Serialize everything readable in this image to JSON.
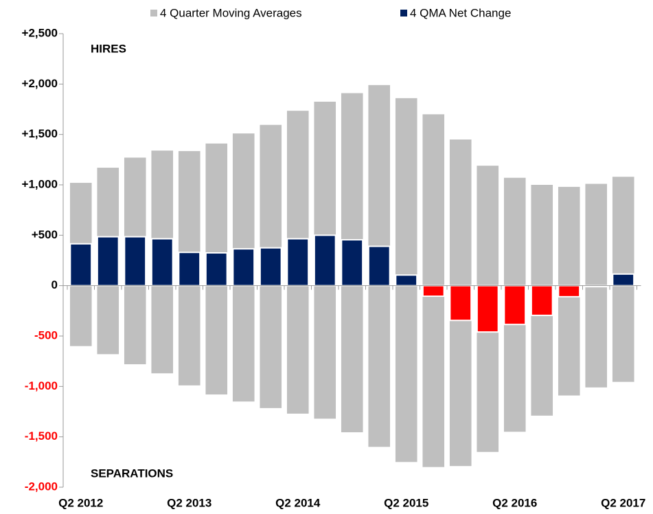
{
  "chart_data": {
    "type": "bar",
    "categories": [
      "Q2 2012",
      null,
      null,
      null,
      "Q2 2013",
      null,
      null,
      null,
      "Q2 2014",
      null,
      null,
      null,
      "Q2 2015",
      null,
      null,
      null,
      "Q2 2016",
      null,
      null,
      null,
      "Q2 2017"
    ],
    "series": [
      {
        "name": "4 Quarter Moving Averages",
        "color": "#bfbfbf",
        "values": [
          1020,
          1170,
          1270,
          1340,
          1335,
          1410,
          1510,
          1595,
          1735,
          1825,
          1910,
          1990,
          1860,
          1700,
          1450,
          1190,
          1070,
          1000,
          980,
          1010,
          1080
        ]
      },
      {
        "color": "#bfbfbf",
        "values": [
          -600,
          -680,
          -780,
          -870,
          -990,
          -1080,
          -1150,
          -1215,
          -1270,
          -1320,
          -1455,
          -1600,
          -1750,
          -1800,
          -1790,
          -1650,
          -1450,
          -1290,
          -1090,
          -1010,
          -955
        ]
      },
      {
        "name": "4 QMA Net Change",
        "color": "#002060",
        "negative_color": "#ff0000",
        "values": [
          415,
          485,
          485,
          465,
          330,
          325,
          365,
          375,
          465,
          500,
          455,
          390,
          105,
          -105,
          -345,
          -460,
          -385,
          -295,
          -110,
          -10,
          115
        ]
      }
    ],
    "ylim": [
      -2000,
      2500
    ],
    "yticks": [
      {
        "value": -2000,
        "label": "-2,000"
      },
      {
        "value": -1500,
        "label": "-1,500"
      },
      {
        "value": -1000,
        "label": "-1,000"
      },
      -500,
      0,
      {
        "value": 500,
        "label": "+500"
      },
      {
        "value": 1000,
        "label": "+1,000"
      },
      {
        "value": 1500,
        "label": "+1,500"
      },
      {
        "value": 2000,
        "label": "+2,000"
      },
      {
        "value": 2500,
        "label": "+2,500"
      }
    ],
    "negative_tick_color": "#ff0000",
    "annotations": [
      "HIRES",
      "SEPARATIONS"
    ]
  }
}
